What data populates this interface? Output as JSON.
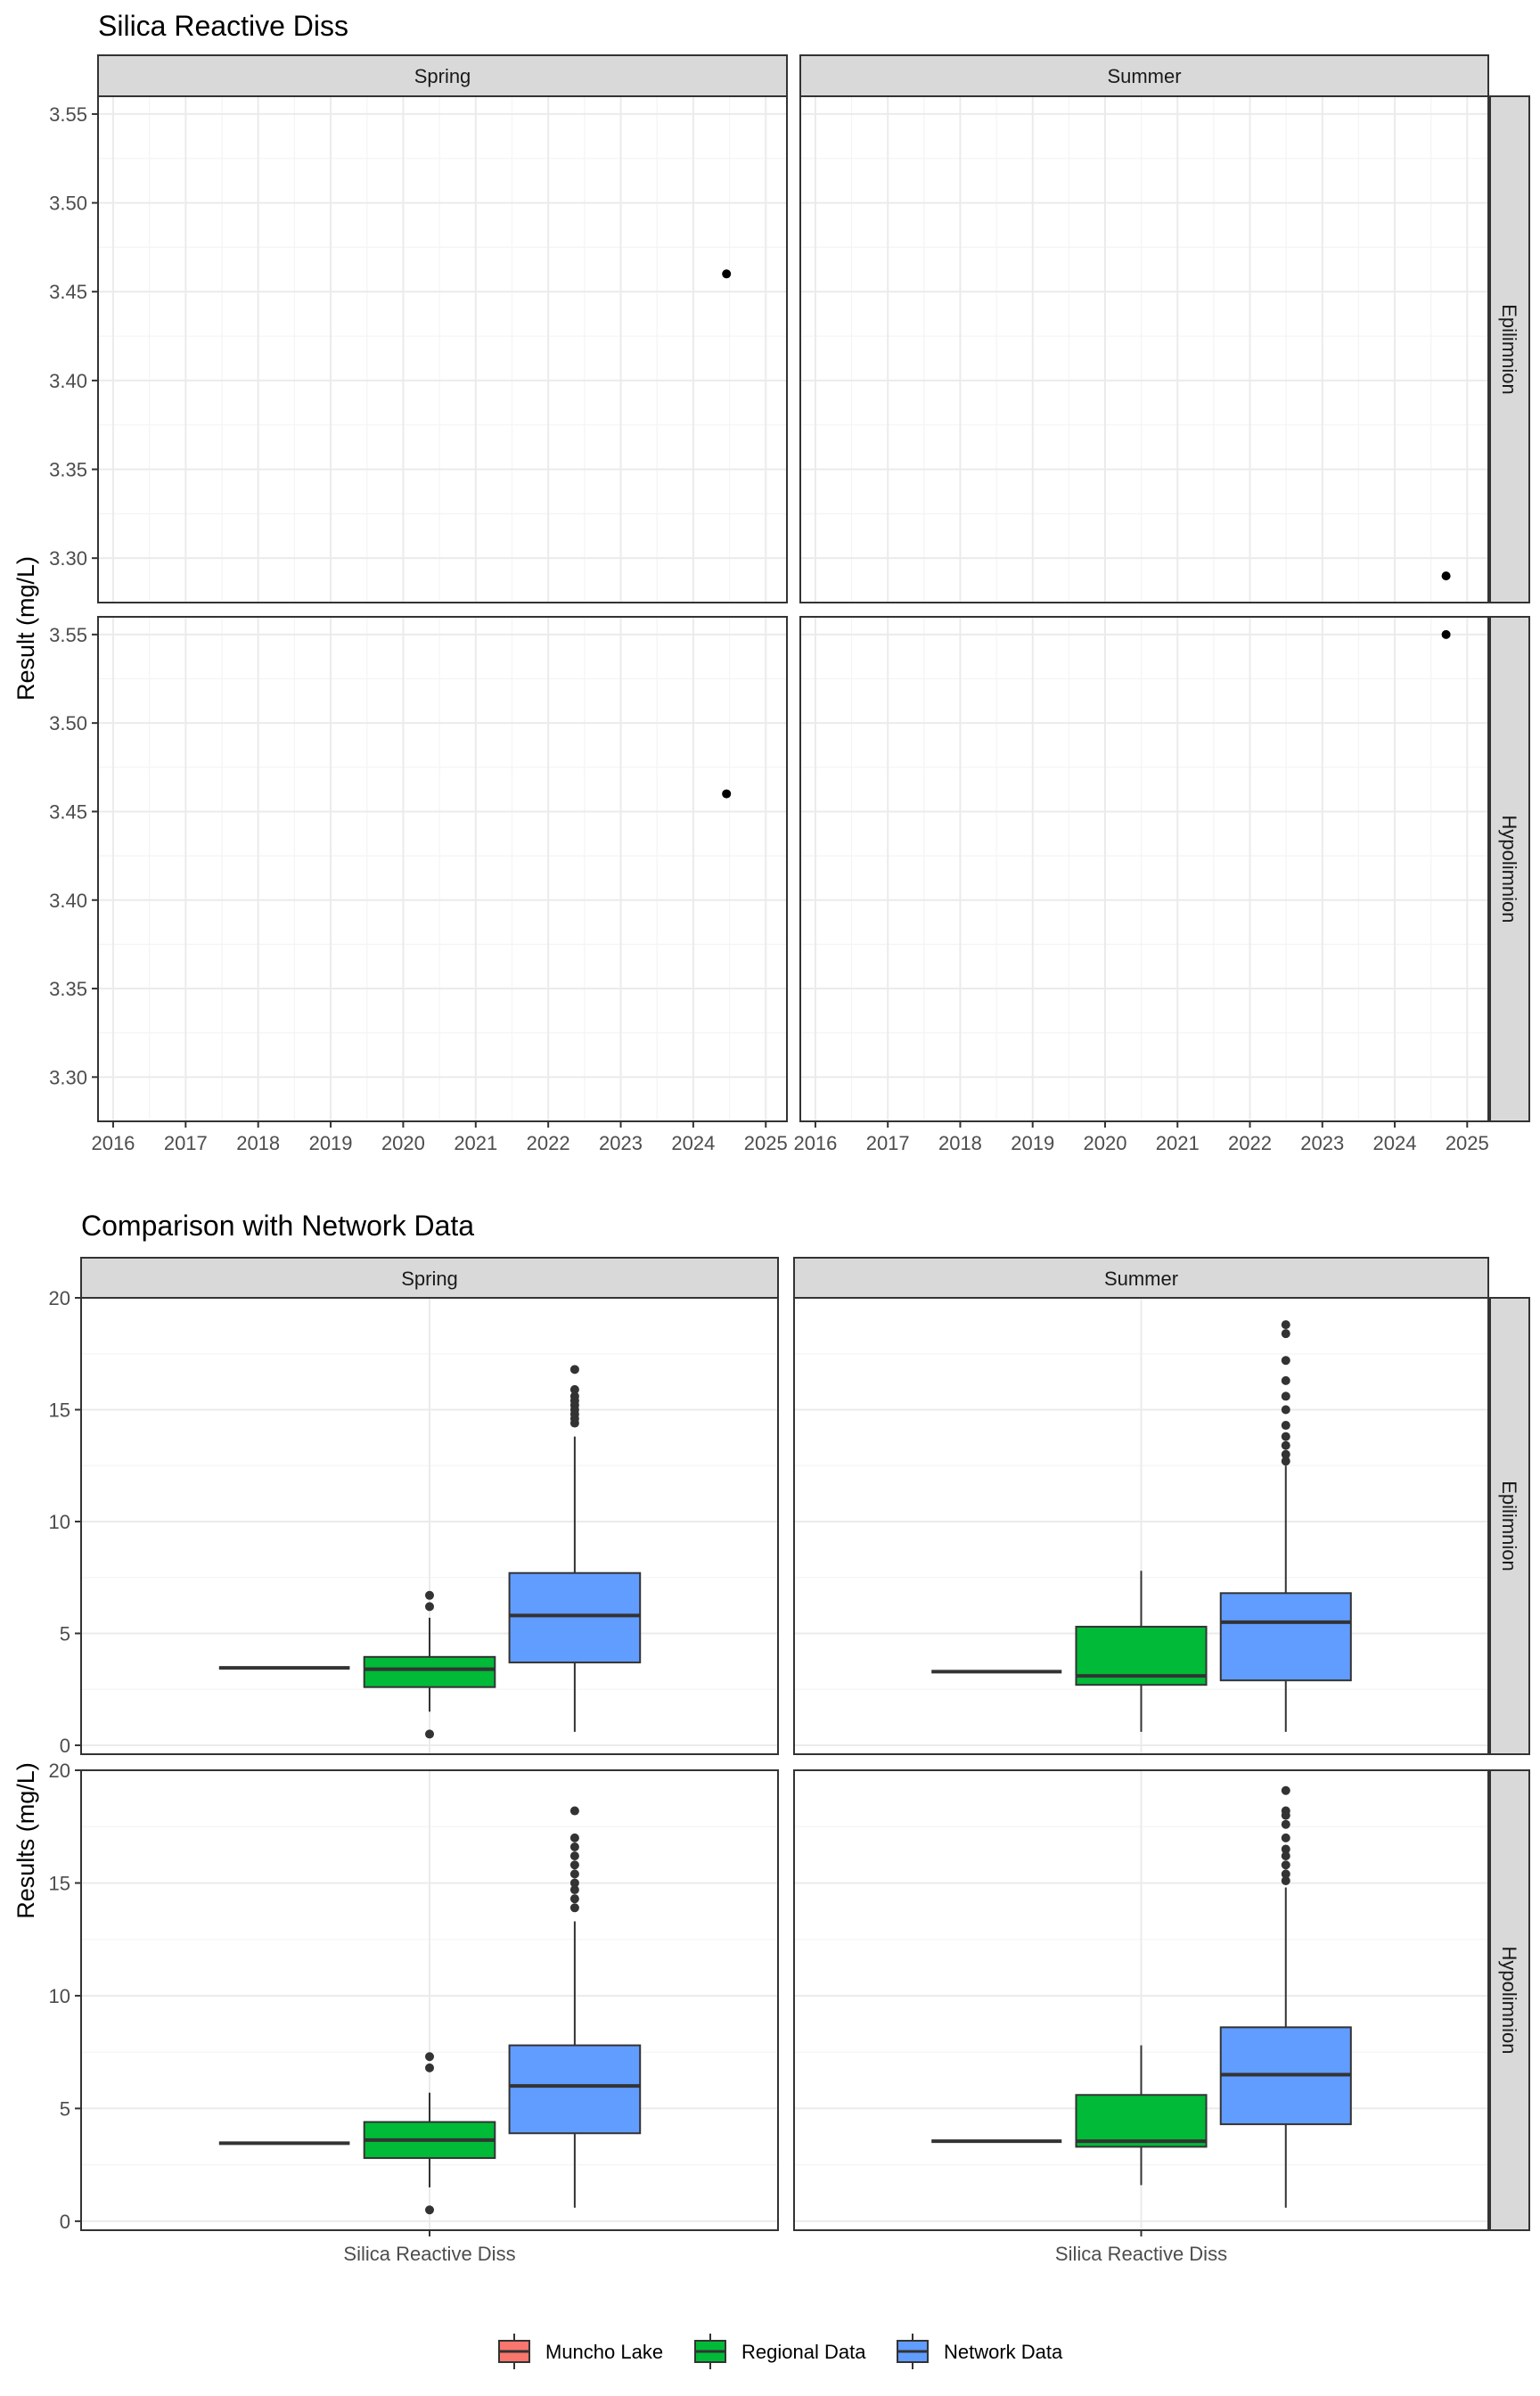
{
  "colors": {
    "panel_border": "#333333",
    "strip_fill": "#d9d9d9",
    "grid_major": "#ebebeb",
    "grid_minor": "#f4f4f4",
    "point": "#000000",
    "muncho": "#f8766d",
    "regional": "#00ba38",
    "network": "#619cff"
  },
  "chart_data": [
    {
      "type": "scatter",
      "title": "Silica Reactive Diss",
      "ylabel": "Result (mg/L)",
      "xlabel": "",
      "grid": true,
      "x_ticks": [
        "2016",
        "2017",
        "2018",
        "2019",
        "2020",
        "2021",
        "2022",
        "2023",
        "2024",
        "2025"
      ],
      "xlim": [
        "2015-10",
        "2025-04"
      ],
      "ylim": [
        3.275,
        3.56
      ],
      "y_ticks": [
        "3.30",
        "3.35",
        "3.40",
        "3.45",
        "3.50",
        "3.55"
      ],
      "columns": [
        "Spring",
        "Summer"
      ],
      "rows": [
        "Epilimnion",
        "Hypolimnion"
      ],
      "panels": [
        {
          "column": "Spring",
          "row": "Epilimnion",
          "points": [
            {
              "x": "2024-06",
              "y": 3.46
            }
          ]
        },
        {
          "column": "Summer",
          "row": "Epilimnion",
          "points": [
            {
              "x": "2024-09",
              "y": 3.29
            }
          ]
        },
        {
          "column": "Spring",
          "row": "Hypolimnion",
          "points": [
            {
              "x": "2024-06",
              "y": 3.46
            }
          ]
        },
        {
          "column": "Summer",
          "row": "Hypolimnion",
          "points": [
            {
              "x": "2024-09",
              "y": 3.55
            }
          ]
        }
      ]
    },
    {
      "type": "box",
      "title": "Comparison with Network Data",
      "ylabel": "Results (mg/L)",
      "xlabel": "",
      "grid": true,
      "category": "Silica Reactive Diss",
      "ylim": [
        -0.4,
        20
      ],
      "y_ticks": [
        "0",
        "5",
        "10",
        "15",
        "20"
      ],
      "columns": [
        "Spring",
        "Summer"
      ],
      "rows": [
        "Epilimnion",
        "Hypolimnion"
      ],
      "legend": {
        "position": "bottom",
        "entries": [
          "Muncho Lake",
          "Regional Data",
          "Network Data"
        ]
      },
      "panels": [
        {
          "column": "Spring",
          "row": "Epilimnion",
          "boxes": [
            {
              "group": "Muncho Lake",
              "min": 3.46,
              "q1": 3.46,
              "median": 3.46,
              "q3": 3.46,
              "max": 3.46,
              "outliers": []
            },
            {
              "group": "Regional Data",
              "min": 1.5,
              "q1": 2.6,
              "median": 3.4,
              "q3": 3.95,
              "max": 5.7,
              "outliers": [
                0.5,
                6.2,
                6.7
              ]
            },
            {
              "group": "Network Data",
              "min": 0.6,
              "q1": 3.7,
              "median": 5.8,
              "q3": 7.7,
              "max": 13.8,
              "outliers": [
                14.4,
                14.6,
                14.8,
                15.0,
                15.2,
                15.4,
                15.6,
                15.9,
                16.8
              ]
            }
          ]
        },
        {
          "column": "Summer",
          "row": "Epilimnion",
          "boxes": [
            {
              "group": "Muncho Lake",
              "min": 3.29,
              "q1": 3.29,
              "median": 3.29,
              "q3": 3.29,
              "max": 3.29,
              "outliers": []
            },
            {
              "group": "Regional Data",
              "min": 0.6,
              "q1": 2.7,
              "median": 3.1,
              "q3": 5.3,
              "max": 7.8,
              "outliers": []
            },
            {
              "group": "Network Data",
              "min": 0.6,
              "q1": 2.9,
              "median": 5.5,
              "q3": 6.8,
              "max": 12.5,
              "outliers": [
                12.7,
                13.0,
                13.4,
                13.8,
                14.3,
                15.0,
                15.6,
                16.3,
                17.2,
                18.4,
                18.8
              ]
            }
          ]
        },
        {
          "column": "Spring",
          "row": "Hypolimnion",
          "boxes": [
            {
              "group": "Muncho Lake",
              "min": 3.46,
              "q1": 3.46,
              "median": 3.46,
              "q3": 3.46,
              "max": 3.46,
              "outliers": []
            },
            {
              "group": "Regional Data",
              "min": 1.5,
              "q1": 2.8,
              "median": 3.6,
              "q3": 4.4,
              "max": 5.7,
              "outliers": [
                0.5,
                6.8,
                7.3
              ]
            },
            {
              "group": "Network Data",
              "min": 0.6,
              "q1": 3.9,
              "median": 6.0,
              "q3": 7.8,
              "max": 13.3,
              "outliers": [
                13.9,
                14.3,
                14.7,
                15.0,
                15.4,
                15.8,
                16.2,
                16.6,
                17.0,
                18.2
              ]
            }
          ]
        },
        {
          "column": "Summer",
          "row": "Hypolimnion",
          "boxes": [
            {
              "group": "Muncho Lake",
              "min": 3.55,
              "q1": 3.55,
              "median": 3.55,
              "q3": 3.55,
              "max": 3.55,
              "outliers": []
            },
            {
              "group": "Regional Data",
              "min": 1.6,
              "q1": 3.3,
              "median": 3.55,
              "q3": 5.6,
              "max": 7.8,
              "outliers": []
            },
            {
              "group": "Network Data",
              "min": 0.6,
              "q1": 4.3,
              "median": 6.5,
              "q3": 8.6,
              "max": 14.8,
              "outliers": [
                15.1,
                15.4,
                15.8,
                16.2,
                16.5,
                17.0,
                17.6,
                18.0,
                18.2,
                19.1
              ]
            }
          ]
        }
      ]
    }
  ]
}
